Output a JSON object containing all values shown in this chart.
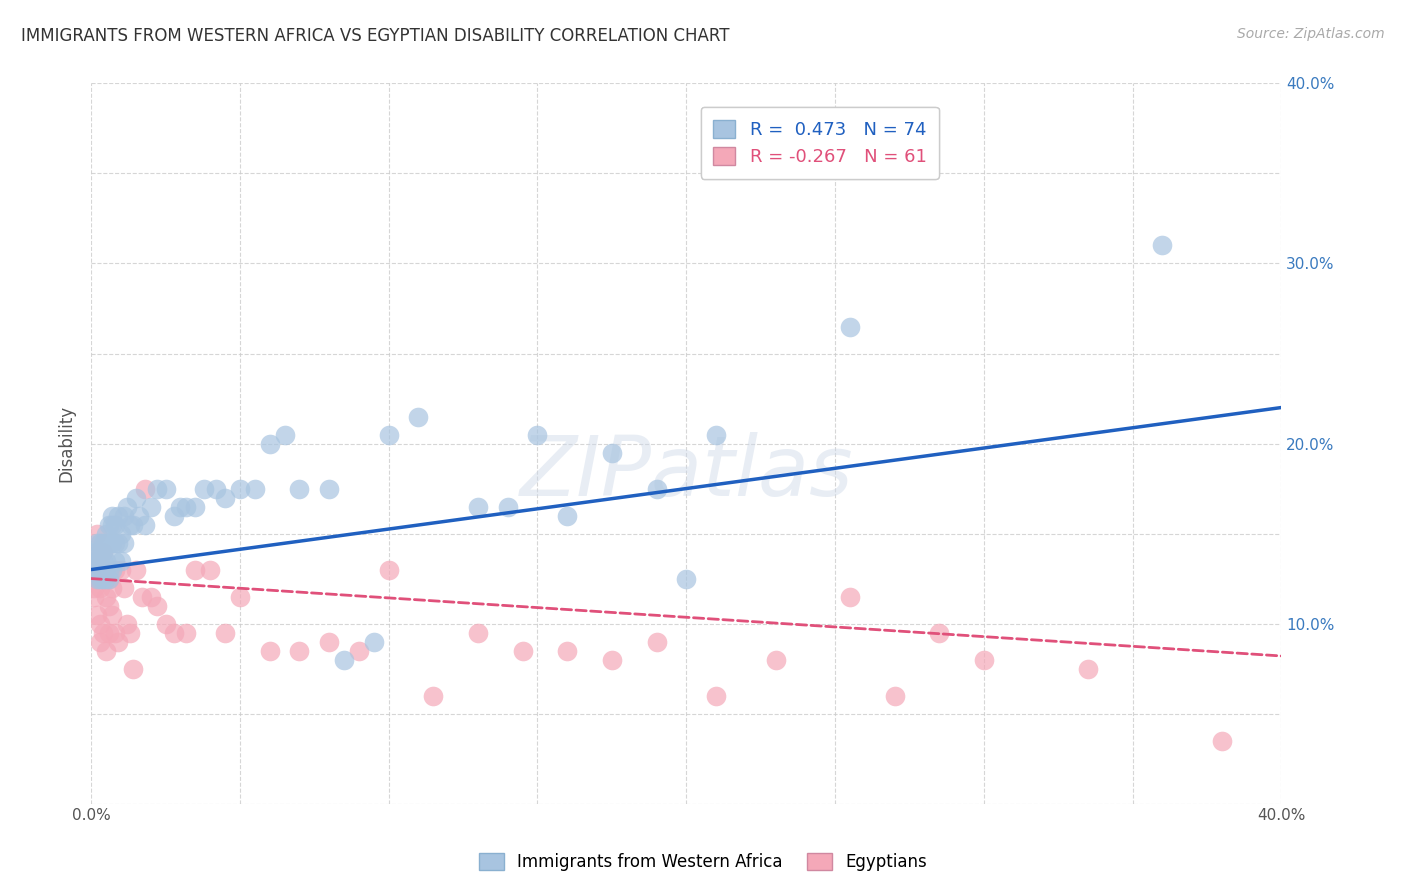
{
  "title": "IMMIGRANTS FROM WESTERN AFRICA VS EGYPTIAN DISABILITY CORRELATION CHART",
  "source": "Source: ZipAtlas.com",
  "ylabel": "Disability",
  "xlim": [
    0.0,
    0.4
  ],
  "ylim": [
    0.0,
    0.4
  ],
  "xticks": [
    0.0,
    0.05,
    0.1,
    0.15,
    0.2,
    0.25,
    0.3,
    0.35,
    0.4
  ],
  "yticks": [
    0.0,
    0.05,
    0.1,
    0.15,
    0.2,
    0.25,
    0.3,
    0.35,
    0.4
  ],
  "blue_color": "#a8c4e0",
  "pink_color": "#f4a8b8",
  "blue_line_color": "#2060c0",
  "pink_line_color": "#e0507a",
  "legend_blue_label": "R =  0.473   N = 74",
  "legend_pink_label": "R = -0.267   N = 61",
  "watermark": "ZIPatlas",
  "blue_scatter_x": [
    0.001,
    0.001,
    0.001,
    0.002,
    0.002,
    0.002,
    0.002,
    0.003,
    0.003,
    0.003,
    0.003,
    0.003,
    0.004,
    0.004,
    0.004,
    0.004,
    0.005,
    0.005,
    0.005,
    0.005,
    0.005,
    0.006,
    0.006,
    0.006,
    0.006,
    0.007,
    0.007,
    0.007,
    0.007,
    0.008,
    0.008,
    0.008,
    0.009,
    0.009,
    0.01,
    0.01,
    0.011,
    0.011,
    0.012,
    0.013,
    0.014,
    0.015,
    0.016,
    0.018,
    0.02,
    0.022,
    0.025,
    0.028,
    0.03,
    0.032,
    0.035,
    0.038,
    0.042,
    0.045,
    0.05,
    0.055,
    0.06,
    0.065,
    0.07,
    0.08,
    0.085,
    0.095,
    0.1,
    0.11,
    0.13,
    0.14,
    0.15,
    0.16,
    0.175,
    0.19,
    0.2,
    0.21,
    0.255,
    0.36
  ],
  "blue_scatter_y": [
    0.135,
    0.13,
    0.14,
    0.13,
    0.135,
    0.125,
    0.145,
    0.14,
    0.13,
    0.135,
    0.125,
    0.145,
    0.14,
    0.135,
    0.125,
    0.145,
    0.15,
    0.13,
    0.135,
    0.125,
    0.145,
    0.155,
    0.13,
    0.145,
    0.125,
    0.155,
    0.145,
    0.13,
    0.16,
    0.155,
    0.145,
    0.135,
    0.16,
    0.145,
    0.15,
    0.135,
    0.16,
    0.145,
    0.165,
    0.155,
    0.155,
    0.17,
    0.16,
    0.155,
    0.165,
    0.175,
    0.175,
    0.16,
    0.165,
    0.165,
    0.165,
    0.175,
    0.175,
    0.17,
    0.175,
    0.175,
    0.2,
    0.205,
    0.175,
    0.175,
    0.08,
    0.09,
    0.205,
    0.215,
    0.165,
    0.165,
    0.205,
    0.16,
    0.195,
    0.175,
    0.125,
    0.205,
    0.265,
    0.31
  ],
  "pink_scatter_x": [
    0.001,
    0.001,
    0.001,
    0.002,
    0.002,
    0.002,
    0.002,
    0.003,
    0.003,
    0.003,
    0.003,
    0.004,
    0.004,
    0.004,
    0.005,
    0.005,
    0.005,
    0.006,
    0.006,
    0.006,
    0.007,
    0.007,
    0.008,
    0.008,
    0.009,
    0.01,
    0.011,
    0.012,
    0.013,
    0.014,
    0.015,
    0.017,
    0.018,
    0.02,
    0.022,
    0.025,
    0.028,
    0.032,
    0.035,
    0.04,
    0.045,
    0.05,
    0.06,
    0.07,
    0.08,
    0.09,
    0.1,
    0.115,
    0.13,
    0.145,
    0.16,
    0.175,
    0.19,
    0.21,
    0.23,
    0.255,
    0.27,
    0.285,
    0.3,
    0.335,
    0.38
  ],
  "pink_scatter_y": [
    0.13,
    0.12,
    0.115,
    0.15,
    0.125,
    0.14,
    0.105,
    0.13,
    0.12,
    0.1,
    0.09,
    0.14,
    0.125,
    0.095,
    0.13,
    0.115,
    0.085,
    0.125,
    0.11,
    0.095,
    0.12,
    0.105,
    0.13,
    0.095,
    0.09,
    0.13,
    0.12,
    0.1,
    0.095,
    0.075,
    0.13,
    0.115,
    0.175,
    0.115,
    0.11,
    0.1,
    0.095,
    0.095,
    0.13,
    0.13,
    0.095,
    0.115,
    0.085,
    0.085,
    0.09,
    0.085,
    0.13,
    0.06,
    0.095,
    0.085,
    0.085,
    0.08,
    0.09,
    0.06,
    0.08,
    0.115,
    0.06,
    0.095,
    0.08,
    0.075,
    0.035
  ],
  "blue_trendline_x": [
    0.0,
    0.4
  ],
  "blue_trendline_y": [
    0.13,
    0.22
  ],
  "pink_trendline_x": [
    0.0,
    0.4
  ],
  "pink_trendline_y": [
    0.125,
    0.082
  ],
  "grid_color": "#cccccc",
  "bg_color": "#ffffff",
  "bottom_legend_labels": [
    "Immigrants from Western Africa",
    "Egyptians"
  ]
}
